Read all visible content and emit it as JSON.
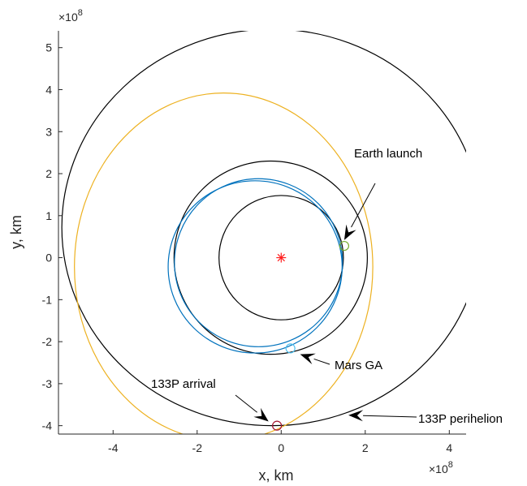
{
  "chart_data": {
    "type": "line",
    "title": "",
    "xlabel": "x, km",
    "ylabel": "y, km",
    "x_exponent": "×10",
    "x_exponent_power": "8",
    "y_exponent": "×10",
    "y_exponent_power": "8",
    "xlim": [
      -5.3,
      4.4
    ],
    "ylim": [
      -4.2,
      5.4
    ],
    "xticks": [
      -4,
      -2,
      0,
      2,
      4
    ],
    "xtick_labels": [
      "-4",
      "-2",
      "0",
      "2",
      "4"
    ],
    "yticks": [
      -4,
      -3,
      -2,
      -1,
      0,
      1,
      2,
      3,
      4,
      5
    ],
    "ytick_labels": [
      "-4",
      "-3",
      "-2",
      "-1",
      "0",
      "1",
      "2",
      "3",
      "4",
      "5"
    ],
    "grid": false,
    "sun": {
      "x": 0,
      "y": 0,
      "color": "#ff2020"
    },
    "orbits": [
      {
        "kind": "circle",
        "cx": 0.0,
        "cy": 0.0,
        "rx": 1.48,
        "ry": 1.48,
        "color": "#000000"
      },
      {
        "kind": "circle",
        "cx": -0.25,
        "cy": 0.0,
        "rx": 2.3,
        "ry": 2.3,
        "color": "#000000"
      },
      {
        "kind": "circle",
        "cx": -0.22,
        "cy": 0.72,
        "rx": 5.0,
        "ry": 4.72,
        "color": "#000000"
      },
      {
        "kind": "circle",
        "cx": -0.54,
        "cy": -0.12,
        "rx": 2.0,
        "ry": 2.0,
        "color": "#0072bd"
      },
      {
        "kind": "circle",
        "cx": -0.62,
        "cy": -0.22,
        "rx": 2.07,
        "ry": 2.05,
        "color": "#0072bd"
      },
      {
        "kind": "circle",
        "cx": -1.37,
        "cy": -0.22,
        "rx": 3.55,
        "ry": 4.14,
        "color": "#edb120"
      }
    ],
    "markers": [
      {
        "name": "earth-launch-marker",
        "x": 1.5,
        "y": 0.28,
        "color": "#77ac30"
      },
      {
        "name": "mars-ga-marker",
        "x": 0.22,
        "y": -2.16,
        "color": "#4dbeee"
      },
      {
        "name": "133p-arrival-marker",
        "x": -0.1,
        "y": -4.0,
        "color": "#a2142f"
      }
    ],
    "annotations": [
      {
        "text": "Earth launch",
        "arrow_to": [
          1.5,
          0.42
        ]
      },
      {
        "text": "Mars GA",
        "arrow_to": [
          0.45,
          -2.3
        ]
      },
      {
        "text": "133P arrival",
        "arrow_to": [
          -0.3,
          -3.9
        ]
      },
      {
        "text": "133P perihelion",
        "arrow_to": [
          1.6,
          -3.75
        ]
      }
    ]
  }
}
